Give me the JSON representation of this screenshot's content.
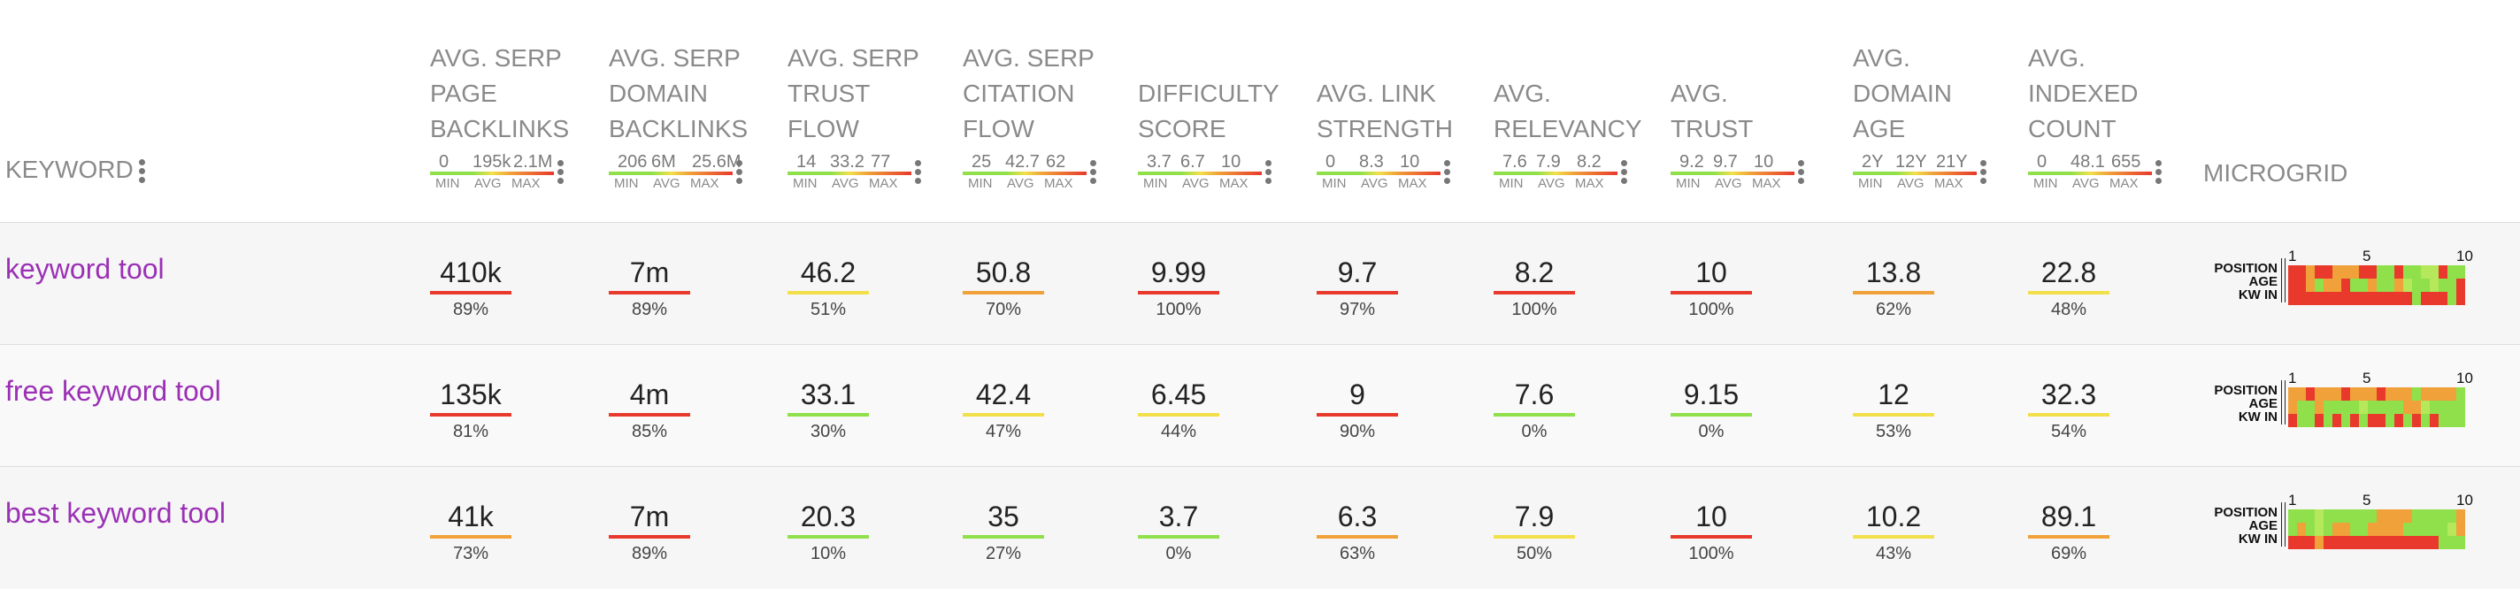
{
  "header": {
    "keyword_label": "KEYWORD",
    "microgrid_label": "MICROGRID",
    "min_label": "MIN",
    "avg_label": "AVG",
    "max_label": "MAX",
    "columns": [
      {
        "title": [
          "AVG. SERP",
          "PAGE",
          "BACKLINKS"
        ],
        "min": "0",
        "avg": "195k",
        "max": "2.1M"
      },
      {
        "title": [
          "AVG. SERP",
          "DOMAIN",
          "BACKLINKS"
        ],
        "min": "206",
        "avg": "6M",
        "max": "25.6M"
      },
      {
        "title": [
          "AVG. SERP",
          "TRUST",
          "FLOW"
        ],
        "min": "14",
        "avg": "33.2",
        "max": "77"
      },
      {
        "title": [
          "AVG. SERP",
          "CITATION",
          "FLOW"
        ],
        "min": "25",
        "avg": "42.7",
        "max": "62"
      },
      {
        "title": [
          "DIFFICULTY",
          "SCORE"
        ],
        "min": "3.7",
        "avg": "6.7",
        "max": "10"
      },
      {
        "title": [
          "AVG. LINK",
          "STRENGTH"
        ],
        "min": "0",
        "avg": "8.3",
        "max": "10"
      },
      {
        "title": [
          "AVG.",
          "RELEVANCY"
        ],
        "min": "7.6",
        "avg": "7.9",
        "max": "8.2"
      },
      {
        "title": [
          "AVG.",
          "TRUST"
        ],
        "min": "9.2",
        "avg": "9.7",
        "max": "10"
      },
      {
        "title": [
          "AVG.",
          "DOMAIN",
          "AGE"
        ],
        "min": "2Y",
        "avg": "12Y",
        "max": "21Y"
      },
      {
        "title": [
          "AVG.",
          "INDEXED",
          "COUNT"
        ],
        "min": "0",
        "avg": "48.1",
        "max": "655"
      }
    ]
  },
  "microgrid": {
    "row_labels": [
      "POSITION",
      "AGE",
      "KW IN"
    ],
    "ticks": [
      "1",
      "5",
      "10"
    ]
  },
  "colors": {
    "red": "#e8392c",
    "orange": "#f0a13a",
    "yellow": "#f2e04a",
    "green": "#8fe04a",
    "light_green": "#b5e85a"
  },
  "rows": [
    {
      "keyword": "keyword tool",
      "cells": [
        {
          "value": "410k",
          "pct": "89%",
          "color": "red"
        },
        {
          "value": "7m",
          "pct": "89%",
          "color": "red"
        },
        {
          "value": "46.2",
          "pct": "51%",
          "color": "yellow"
        },
        {
          "value": "50.8",
          "pct": "70%",
          "color": "orange"
        },
        {
          "value": "9.99",
          "pct": "100%",
          "color": "red"
        },
        {
          "value": "9.7",
          "pct": "97%",
          "color": "red"
        },
        {
          "value": "8.2",
          "pct": "100%",
          "color": "red"
        },
        {
          "value": "10",
          "pct": "100%",
          "color": "red"
        },
        {
          "value": "13.8",
          "pct": "62%",
          "color": "orange"
        },
        {
          "value": "22.8",
          "pct": "48%",
          "color": "yellow"
        }
      ],
      "grid": [
        [
          "red",
          "red",
          "orange",
          "red",
          "red",
          "orange",
          "orange",
          "orange",
          "red",
          "red",
          "green",
          "green",
          "red",
          "green",
          "green",
          "light_green",
          "light_green",
          "red",
          "green",
          "green"
        ],
        [
          "red",
          "red",
          "orange",
          "green",
          "orange",
          "orange",
          "red",
          "green",
          "green",
          "orange",
          "green",
          "green",
          "orange",
          "light_green",
          "green",
          "green",
          "light_green",
          "green",
          "green",
          "red"
        ],
        [
          "red",
          "red",
          "red",
          "red",
          "red",
          "red",
          "red",
          "red",
          "red",
          "red",
          "red",
          "red",
          "red",
          "red",
          "green",
          "red",
          "red",
          "red",
          "green",
          "red"
        ]
      ]
    },
    {
      "keyword": "free keyword tool",
      "cells": [
        {
          "value": "135k",
          "pct": "81%",
          "color": "red"
        },
        {
          "value": "4m",
          "pct": "85%",
          "color": "red"
        },
        {
          "value": "33.1",
          "pct": "30%",
          "color": "green"
        },
        {
          "value": "42.4",
          "pct": "47%",
          "color": "yellow"
        },
        {
          "value": "6.45",
          "pct": "44%",
          "color": "yellow"
        },
        {
          "value": "9",
          "pct": "90%",
          "color": "red"
        },
        {
          "value": "7.6",
          "pct": "0%",
          "color": "green"
        },
        {
          "value": "9.15",
          "pct": "0%",
          "color": "green"
        },
        {
          "value": "12",
          "pct": "53%",
          "color": "yellow"
        },
        {
          "value": "32.3",
          "pct": "54%",
          "color": "yellow"
        }
      ],
      "grid": [
        [
          "orange",
          "orange",
          "red",
          "orange",
          "orange",
          "orange",
          "red",
          "orange",
          "orange",
          "orange",
          "red",
          "orange",
          "orange",
          "orange",
          "green",
          "orange",
          "orange",
          "orange",
          "orange",
          "green"
        ],
        [
          "orange",
          "green",
          "green",
          "orange",
          "green",
          "green",
          "green",
          "green",
          "light_green",
          "green",
          "green",
          "green",
          "green",
          "orange",
          "orange",
          "light_green",
          "green",
          "green",
          "green",
          "green"
        ],
        [
          "red",
          "green",
          "green",
          "red",
          "green",
          "red",
          "green",
          "red",
          "green",
          "red",
          "red",
          "green",
          "red",
          "green",
          "red",
          "green",
          "red",
          "green",
          "green",
          "green"
        ]
      ]
    },
    {
      "keyword": "best keyword tool",
      "cells": [
        {
          "value": "41k",
          "pct": "73%",
          "color": "orange"
        },
        {
          "value": "7m",
          "pct": "89%",
          "color": "red"
        },
        {
          "value": "20.3",
          "pct": "10%",
          "color": "green"
        },
        {
          "value": "35",
          "pct": "27%",
          "color": "green"
        },
        {
          "value": "3.7",
          "pct": "0%",
          "color": "green"
        },
        {
          "value": "6.3",
          "pct": "63%",
          "color": "orange"
        },
        {
          "value": "7.9",
          "pct": "50%",
          "color": "yellow"
        },
        {
          "value": "10",
          "pct": "100%",
          "color": "red"
        },
        {
          "value": "10.2",
          "pct": "43%",
          "color": "yellow"
        },
        {
          "value": "89.1",
          "pct": "69%",
          "color": "orange"
        }
      ],
      "grid": [
        [
          "green",
          "green",
          "green",
          "light_green",
          "green",
          "green",
          "green",
          "green",
          "green",
          "green",
          "orange",
          "orange",
          "orange",
          "orange",
          "green",
          "green",
          "green",
          "green",
          "green",
          "orange"
        ],
        [
          "green",
          "orange",
          "green",
          "light_green",
          "green",
          "orange",
          "orange",
          "green",
          "green",
          "orange",
          "orange",
          "orange",
          "orange",
          "green",
          "green",
          "green",
          "green",
          "green",
          "light_green",
          "orange"
        ],
        [
          "red",
          "red",
          "red",
          "orange",
          "red",
          "red",
          "red",
          "red",
          "red",
          "red",
          "red",
          "red",
          "red",
          "red",
          "red",
          "red",
          "red",
          "green",
          "green",
          "green"
        ]
      ]
    }
  ]
}
